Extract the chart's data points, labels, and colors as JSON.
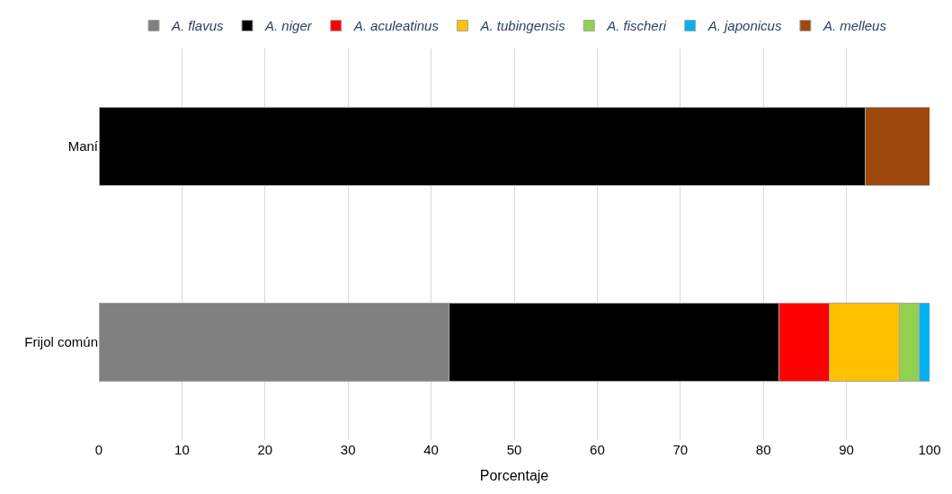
{
  "chart_data": {
    "type": "bar",
    "orientation": "horizontal",
    "stacked": true,
    "xlabel": "Porcentaje",
    "categories": [
      "Maní",
      "Frijol común"
    ],
    "series": [
      {
        "name": "A. flavus",
        "color": "#808080",
        "values": [
          null,
          42.2
        ]
      },
      {
        "name": "A. niger",
        "color": "#000000",
        "values": [
          92.3,
          39.7
        ]
      },
      {
        "name": "A. aculeatinus",
        "color": "#ff0000",
        "values": [
          null,
          6.0
        ]
      },
      {
        "name": "A. tubingensis",
        "color": "#ffc000",
        "values": [
          null,
          8.5
        ]
      },
      {
        "name": "A. fischeri",
        "color": "#92d050",
        "values": [
          null,
          2.4
        ]
      },
      {
        "name": "A. japonicus",
        "color": "#00b0f0",
        "values": [
          null,
          1.2
        ]
      },
      {
        "name": "A. melleus",
        "color": "#9e480e",
        "values": [
          7.7,
          null
        ]
      }
    ],
    "xlim": [
      0,
      100
    ],
    "xticks": [
      0,
      10,
      20,
      30,
      40,
      50,
      60,
      70,
      80,
      90,
      100
    ],
    "grid": "x",
    "legend": "top"
  }
}
